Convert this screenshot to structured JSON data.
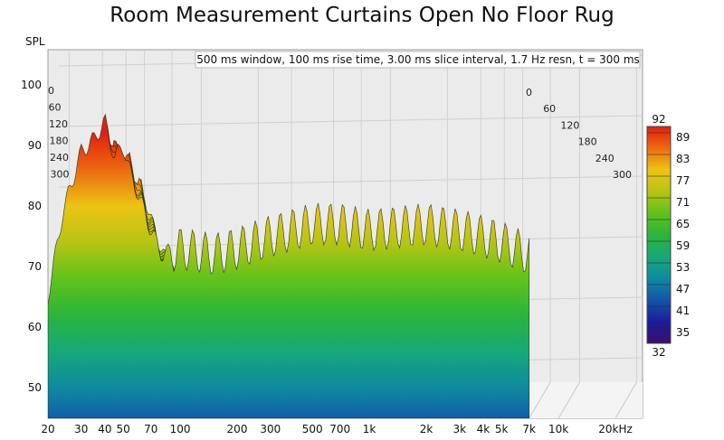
{
  "chart_data": {
    "type": "waterfall",
    "title": "Room Measurement Curtains Open No Floor Rug",
    "ylabel": "SPL",
    "info": "500 ms window, 100 ms rise time, 3.00 ms slice interval, 1.7 Hz resn, t = 300 ms",
    "xscale": "log",
    "xlim": [
      20,
      20000
    ],
    "ylim": [
      45,
      105
    ],
    "x_ticks": [
      {
        "v": 20,
        "label": "20"
      },
      {
        "v": 30,
        "label": "30"
      },
      {
        "v": 40,
        "label": "40"
      },
      {
        "v": 50,
        "label": "50"
      },
      {
        "v": 70,
        "label": "70"
      },
      {
        "v": 100,
        "label": "100"
      },
      {
        "v": 200,
        "label": "200"
      },
      {
        "v": 300,
        "label": "300"
      },
      {
        "v": 500,
        "label": "500"
      },
      {
        "v": 700,
        "label": "700"
      },
      {
        "v": 1000,
        "label": "1k"
      },
      {
        "v": 2000,
        "label": "2k"
      },
      {
        "v": 3000,
        "label": "3k"
      },
      {
        "v": 4000,
        "label": "4k"
      },
      {
        "v": 5000,
        "label": "5k"
      },
      {
        "v": 7000,
        "label": "7k"
      },
      {
        "v": 10000,
        "label": "10k"
      },
      {
        "v": 20000,
        "label": "20kHz"
      }
    ],
    "y_ticks": [
      50,
      60,
      70,
      80,
      90,
      100
    ],
    "time_ticks_ms": [
      0,
      60,
      120,
      180,
      240,
      300
    ],
    "colorbar": {
      "min": 32,
      "max": 92,
      "ticks": [
        35,
        41,
        47,
        53,
        59,
        65,
        71,
        77,
        83,
        89
      ],
      "colors": [
        "#3a0f6a",
        "#1c1c9a",
        "#1256a8",
        "#0f8aa0",
        "#18a878",
        "#2ab53a",
        "#62c21c",
        "#b7c414",
        "#ecc414",
        "#ec6a10",
        "#e02010"
      ]
    },
    "surface_front_envelope": [
      {
        "f": 20,
        "spl": 65
      },
      {
        "f": 24,
        "spl": 79
      },
      {
        "f": 30,
        "spl": 89
      },
      {
        "f": 35,
        "spl": 91
      },
      {
        "f": 40,
        "spl": 94
      },
      {
        "f": 45,
        "spl": 88
      },
      {
        "f": 50,
        "spl": 90
      },
      {
        "f": 55,
        "spl": 85
      },
      {
        "f": 60,
        "spl": 82
      },
      {
        "f": 70,
        "spl": 76
      },
      {
        "f": 80,
        "spl": 72
      },
      {
        "f": 100,
        "spl": 73
      },
      {
        "f": 150,
        "spl": 72
      },
      {
        "f": 200,
        "spl": 73
      },
      {
        "f": 300,
        "spl": 75
      },
      {
        "f": 500,
        "spl": 77
      },
      {
        "f": 700,
        "spl": 77
      },
      {
        "f": 1000,
        "spl": 76
      },
      {
        "f": 2000,
        "spl": 77
      },
      {
        "f": 3000,
        "spl": 76
      },
      {
        "f": 4000,
        "spl": 75
      },
      {
        "f": 5000,
        "spl": 74
      },
      {
        "f": 7000,
        "spl": 72
      }
    ]
  }
}
